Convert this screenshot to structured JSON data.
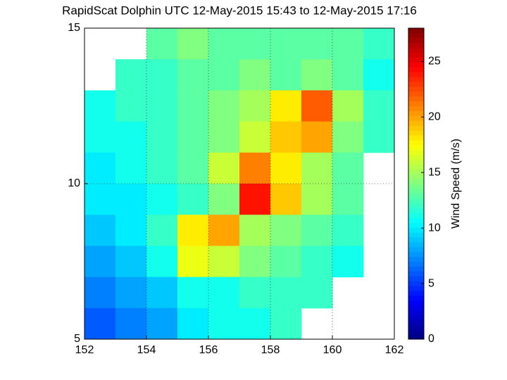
{
  "chart_data": {
    "type": "heatmap",
    "title": "RapidScat Dolphin UTC 12-May-2015 15:43 to 12-May-2015 17:16",
    "x": [
      152.5,
      153.5,
      154.5,
      155.5,
      156.5,
      157.5,
      158.5,
      159.5,
      160.5,
      161.5
    ],
    "y": [
      14.5,
      13.5,
      12.5,
      11.5,
      10.5,
      9.5,
      8.5,
      7.5,
      6.5,
      5.5
    ],
    "z": [
      [
        null,
        null,
        13,
        14,
        13,
        13,
        13,
        13,
        13,
        12
      ],
      [
        null,
        12,
        12,
        13,
        13,
        14,
        13,
        14,
        13,
        11
      ],
      [
        11,
        12,
        12,
        13,
        14,
        15,
        18,
        22,
        15,
        12
      ],
      [
        11,
        11,
        12,
        13,
        14,
        16,
        19,
        20,
        14,
        12
      ],
      [
        10,
        11,
        12,
        13,
        16,
        21,
        18,
        15,
        13,
        null
      ],
      [
        10,
        10,
        11,
        12,
        14,
        24,
        19,
        15,
        13,
        null
      ],
      [
        9,
        10,
        12,
        18,
        20,
        15,
        14,
        13,
        12,
        null
      ],
      [
        8,
        9,
        11,
        17,
        16,
        14,
        13,
        12,
        11,
        null
      ],
      [
        7,
        8,
        9,
        11,
        11,
        12,
        12,
        12,
        null,
        null
      ],
      [
        6,
        7,
        8,
        10,
        11,
        11,
        12,
        null,
        null,
        null
      ]
    ],
    "xlim": [
      152,
      162
    ],
    "ylim": [
      5,
      15
    ],
    "xticks": [
      152,
      154,
      156,
      158,
      160,
      162
    ],
    "yticks": [
      5,
      10,
      15
    ],
    "grid": true,
    "colormap": "jet",
    "colorbar_label": "Wind Speed (m/s)",
    "clim": [
      0,
      28
    ],
    "cticks": [
      0,
      5,
      10,
      15,
      20,
      25
    ]
  }
}
